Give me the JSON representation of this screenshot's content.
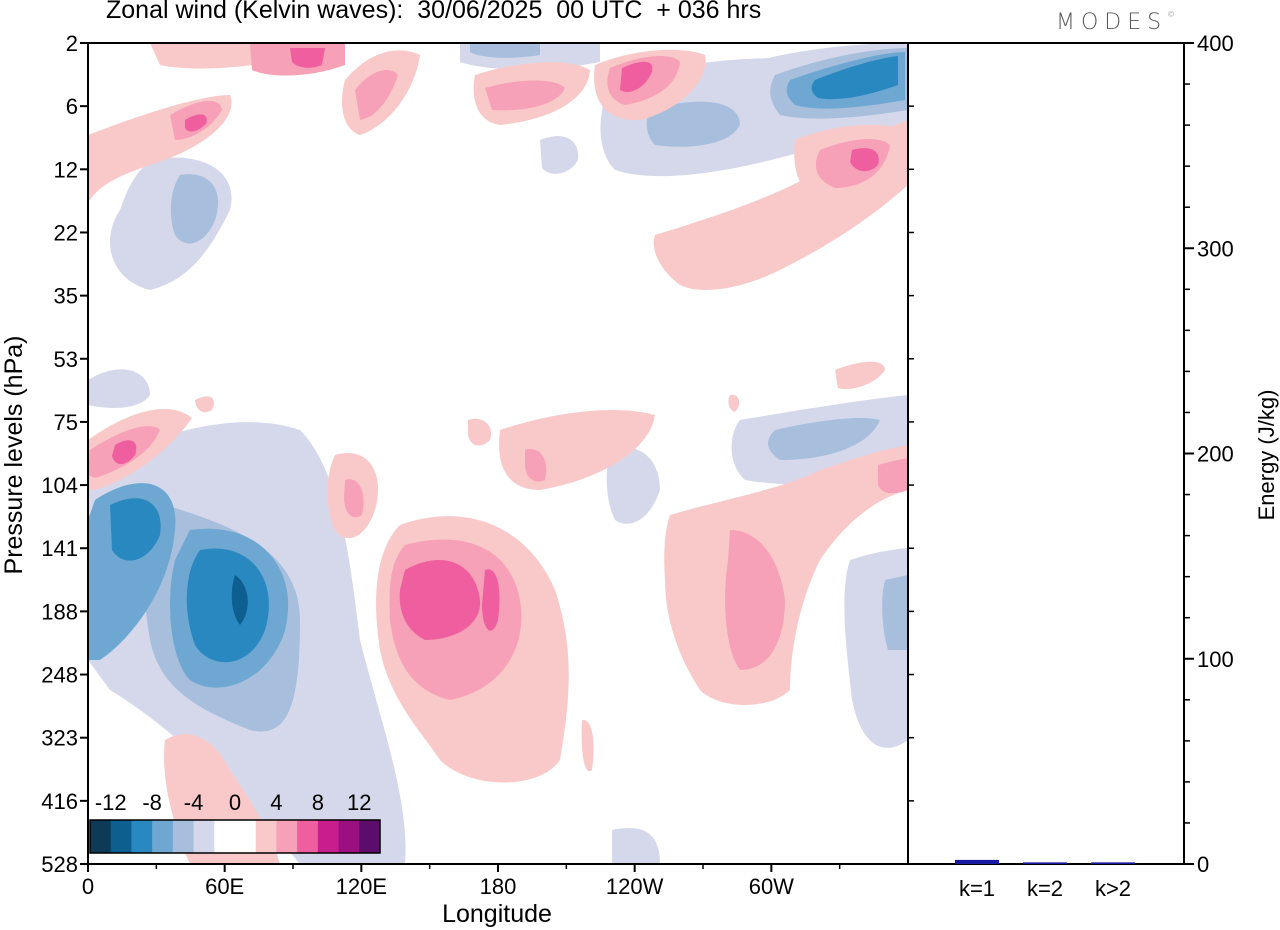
{
  "title": "Zonal wind (Kelvin waves):  30/06/2025  00 UTC  + 036 hrs",
  "brand": "MODES",
  "brand_mark": "©",
  "chart_data": [
    {
      "type": "heatmap",
      "xlabel": "Longitude",
      "ylabel": "Pressure levels (hPa)",
      "x_ticks": [
        "0",
        "60E",
        "120E",
        "180",
        "120W",
        "60W"
      ],
      "x_tick_values": [
        0,
        60,
        120,
        180,
        240,
        300
      ],
      "xlim": [
        0,
        360
      ],
      "y_ticks": [
        "2",
        "6",
        "12",
        "22",
        "35",
        "53",
        "75",
        "104",
        "141",
        "188",
        "248",
        "323",
        "416",
        "528"
      ],
      "y_scale": "log-like pressure, top = 2 hPa, bottom = 528 hPa",
      "colorbar": {
        "labels": [
          "-12",
          "-8",
          "-4",
          "0",
          "4",
          "8",
          "12"
        ],
        "colors": [
          "#0d3a57",
          "#0d5f8f",
          "#2a88c0",
          "#6ea8d2",
          "#a7bedd",
          "#d5d8ea",
          "#ffffff",
          "#ffffff",
          "#f9c9c9",
          "#f6a1b8",
          "#ef5fa0",
          "#c81d8d",
          "#9a1080",
          "#5c0c6b"
        ]
      },
      "features": [
        {
          "sign": "negative",
          "lon": [
            20,
            90
          ],
          "pressure": [
            120,
            400
          ],
          "peak": -12
        },
        {
          "sign": "negative",
          "lon": [
            0,
            50
          ],
          "pressure": [
            100,
            250
          ],
          "peak": -10
        },
        {
          "sign": "positive",
          "lon": [
            130,
            200
          ],
          "pressure": [
            120,
            420
          ],
          "peak": 9
        },
        {
          "sign": "positive",
          "lon": [
            250,
            310
          ],
          "pressure": [
            120,
            330
          ],
          "peak": 6
        },
        {
          "sign": "positive",
          "lon": [
            0,
            40
          ],
          "pressure": [
            70,
            110
          ],
          "peak": 8
        },
        {
          "sign": "negative",
          "lon": [
            290,
            360
          ],
          "pressure": [
            2,
            8
          ],
          "peak": -10
        },
        {
          "sign": "positive",
          "lon": [
            320,
            350
          ],
          "pressure": [
            8,
            16
          ],
          "peak": 8
        },
        {
          "sign": "positive",
          "lon": [
            230,
            250
          ],
          "pressure": [
            2,
            6
          ],
          "peak": 9
        },
        {
          "sign": "negative",
          "lon": [
            260,
            320
          ],
          "pressure": [
            75,
            110
          ],
          "peak": -5
        }
      ]
    },
    {
      "type": "bar",
      "categories": [
        "k=1",
        "k=2",
        "k>2"
      ],
      "values": [
        2.0,
        0.8,
        0.8
      ],
      "ylabel": "Energy (J/kg)",
      "ylim": [
        0,
        400
      ],
      "y_ticks": [
        "0",
        "100",
        "200",
        "300",
        "400"
      ],
      "bar_color": "#1a1aa0"
    }
  ]
}
